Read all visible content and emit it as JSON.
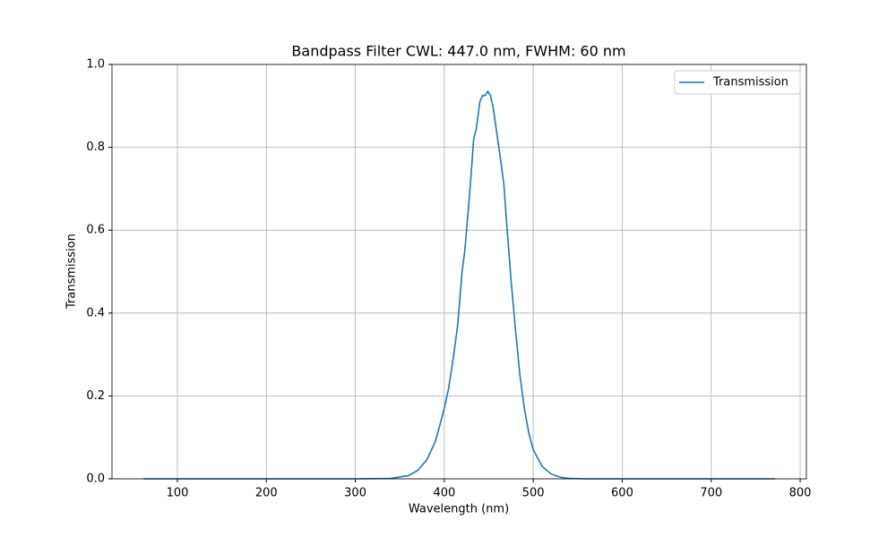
{
  "chart_data": {
    "type": "line",
    "title": "Bandpass Filter CWL: 447.0 nm, FWHM: 60 nm",
    "x_label": "Wavelength (nm)",
    "y_label": "Transmission",
    "x": [
      62,
      300,
      340,
      360,
      370,
      380,
      390,
      400,
      405,
      410,
      415,
      420,
      423,
      427,
      430,
      433,
      436,
      440,
      443,
      446,
      449,
      452,
      455,
      458,
      462,
      467,
      470,
      475,
      480,
      485,
      490,
      495,
      500,
      510,
      520,
      530,
      540,
      560,
      772
    ],
    "series": [
      {
        "name": "Transmission",
        "color": "#1f77b4",
        "values": [
          0,
          0,
          0.001,
          0.008,
          0.02,
          0.045,
          0.09,
          0.17,
          0.22,
          0.29,
          0.37,
          0.5,
          0.55,
          0.65,
          0.73,
          0.82,
          0.845,
          0.91,
          0.925,
          0.925,
          0.935,
          0.925,
          0.895,
          0.85,
          0.79,
          0.71,
          0.62,
          0.48,
          0.36,
          0.25,
          0.17,
          0.11,
          0.07,
          0.03,
          0.012,
          0.004,
          0.001,
          0,
          0
        ]
      }
    ],
    "xlim": [
      26.5,
      807
    ],
    "ylim": [
      0,
      1
    ],
    "xticks": [
      100,
      200,
      300,
      400,
      500,
      600,
      700,
      800
    ],
    "yticks": [
      {
        "value": 0,
        "label": "0.0"
      },
      {
        "value": 0.2,
        "label": "0.2"
      },
      {
        "value": 0.4,
        "label": "0.4"
      },
      {
        "value": 0.6,
        "label": "0.6"
      },
      {
        "value": 0.8,
        "label": "0.8"
      },
      {
        "value": 1,
        "label": "1.0"
      }
    ],
    "grid": true,
    "legend": "upper right"
  }
}
